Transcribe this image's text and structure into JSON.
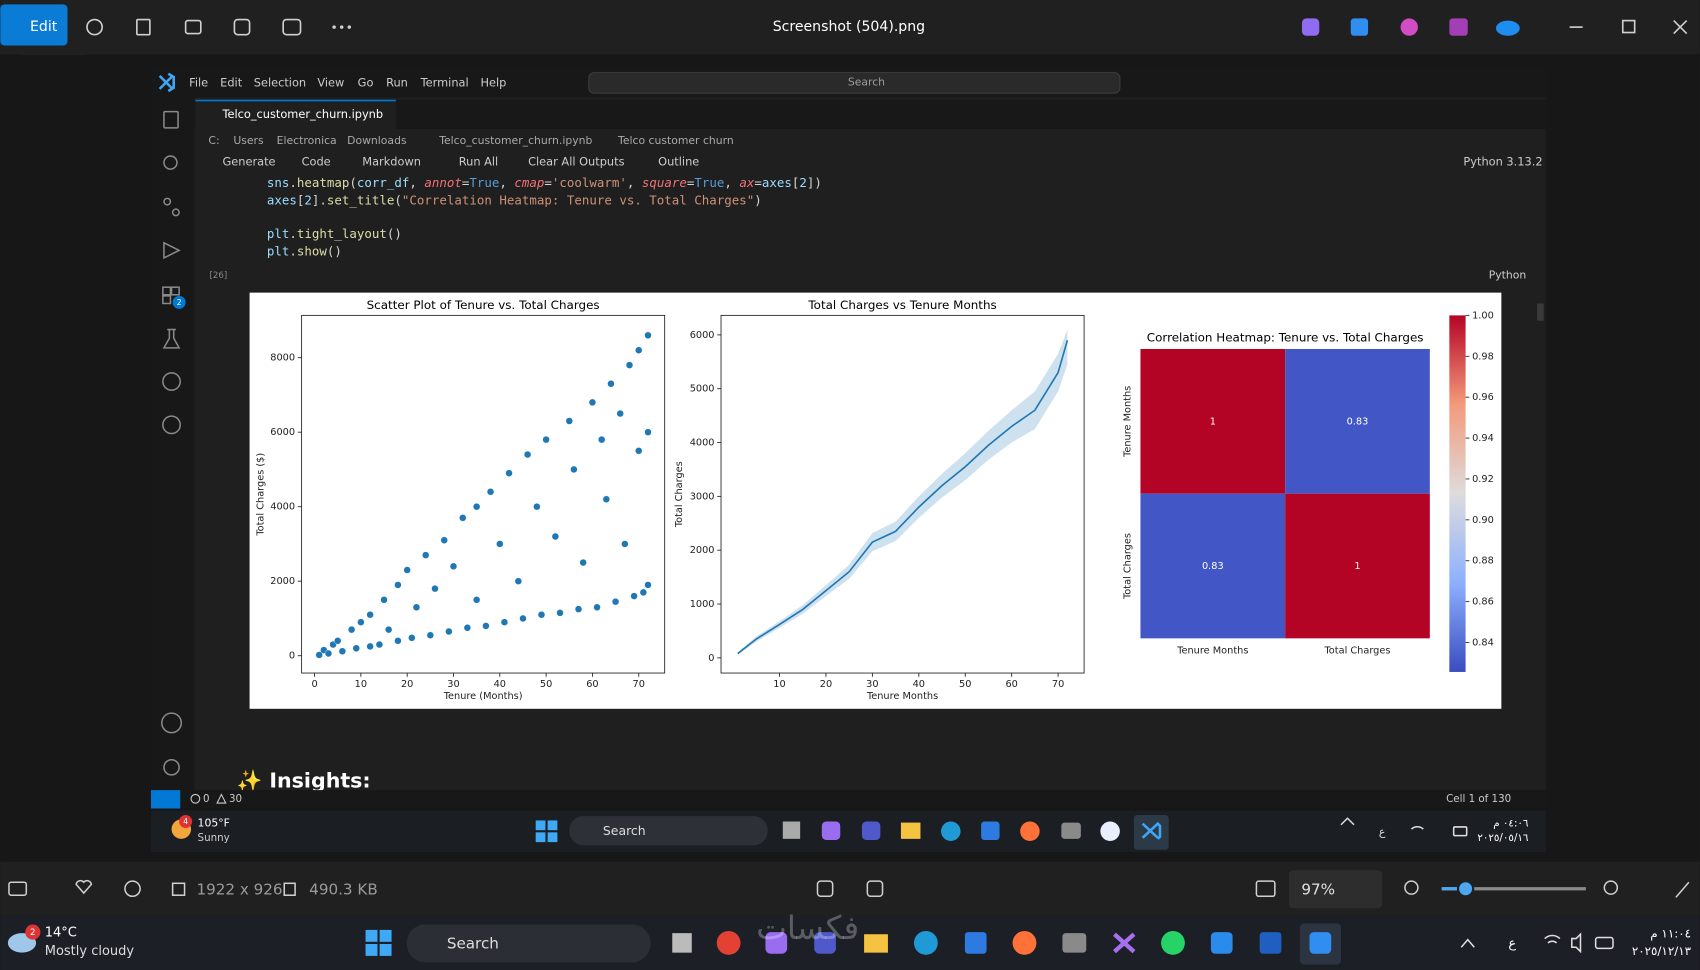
{
  "viewer": {
    "edit": "Edit",
    "file_name": "Screenshot (504).png",
    "dimensions": "1922 x 926",
    "file_size": "490.3 KB",
    "zoom": "97%"
  },
  "vscode": {
    "menu": [
      "File",
      "Edit",
      "Selection",
      "View",
      "Go",
      "Run",
      "Terminal",
      "Help"
    ],
    "search": "Search",
    "tab": "Telco_customer_churn.ipynb",
    "breadcrumb": [
      "C:",
      "Users",
      "Electronica",
      "Downloads",
      "Telco_customer_churn.ipynb",
      "Telco customer churn"
    ],
    "toolbar": [
      "Generate",
      "Code",
      "Markdown",
      "Run All",
      "Clear All Outputs",
      "Outline"
    ],
    "kernel": "Python 3.13.2",
    "code": [
      "sns.heatmap(corr_df, annot=True, cmap='coolwarm', square=True, ax=axes[2])",
      "axes[2].set_title(\"Correlation Heatmap: Tenure vs. Total Charges\")",
      "",
      "plt.tight_layout()",
      "plt.show()"
    ],
    "execution_count": "[26]",
    "cell_language": "Python",
    "markdown_heading": "✨ Insights:",
    "extensions_badge": "2",
    "status": {
      "errors": "0",
      "warnings": "30",
      "cell": "Cell 1 of 130"
    }
  },
  "inner_taskbar": {
    "badge": "4",
    "temperature": "105°F",
    "weather": "Sunny",
    "search": "Search",
    "language": "ع",
    "time": "٠٤:٠٦ م",
    "date": "٢٠٢٥/٠٥/١٦"
  },
  "taskbar": {
    "badge": "2",
    "temperature": "14°C",
    "weather": "Mostly cloudy",
    "search": "Search",
    "watermark": "فكسات",
    "language": "ع",
    "time": "١١:٠٤ م",
    "date": "٢٠٢٥/١٢/١٣"
  },
  "chart_data": [
    {
      "type": "scatter",
      "title": "Scatter Plot of Tenure vs. Total Charges",
      "x_label": "Tenure (Months)",
      "y_label": "Total Charges ($)",
      "color": "#1f77b4",
      "x": [
        1,
        2,
        3,
        4,
        5,
        6,
        8,
        9,
        10,
        12,
        12,
        14,
        15,
        16,
        18,
        18,
        20,
        21,
        22,
        24,
        25,
        26,
        28,
        29,
        30,
        32,
        33,
        35,
        35,
        37,
        38,
        40,
        41,
        42,
        44,
        45,
        46,
        48,
        49,
        50,
        52,
        53,
        55,
        56,
        57,
        58,
        60,
        61,
        62,
        63,
        64,
        65,
        66,
        67,
        68,
        69,
        70,
        70,
        71,
        72,
        72,
        72
      ],
      "y": [
        20,
        150,
        60,
        300,
        400,
        120,
        700,
        200,
        900,
        1100,
        250,
        300,
        1500,
        700,
        1900,
        400,
        2300,
        480,
        1300,
        2700,
        550,
        1800,
        3100,
        650,
        2400,
        3700,
        750,
        4000,
        1500,
        800,
        4400,
        3000,
        900,
        4900,
        2000,
        1000,
        5400,
        4000,
        1100,
        5800,
        3200,
        1150,
        6300,
        5000,
        1250,
        2500,
        6800,
        1300,
        5800,
        4200,
        7300,
        1450,
        6500,
        3000,
        7800,
        1600,
        8200,
        5500,
        1700,
        8600,
        1900,
        6000
      ],
      "xlim": [
        -2.8,
        75.6
      ],
      "ylim": [
        -465,
        9135
      ],
      "xticks": [
        0,
        10,
        20,
        30,
        40,
        50,
        60,
        70
      ],
      "yticks": [
        0,
        2000,
        4000,
        6000,
        8000
      ]
    },
    {
      "type": "line",
      "title": "Total Charges vs Tenure Months",
      "x_label": "Tenure Months",
      "y_label": "Total Charges",
      "color": "#1f77b4",
      "x": [
        1,
        5,
        10,
        15,
        20,
        25,
        30,
        35,
        40,
        45,
        50,
        55,
        60,
        65,
        70,
        72
      ],
      "values": [
        80,
        350,
        620,
        900,
        1250,
        1600,
        2150,
        2350,
        2800,
        3200,
        3550,
        3950,
        4300,
        4600,
        5300,
        5900
      ],
      "ci_lower": [
        60,
        300,
        560,
        820,
        1150,
        1470,
        1980,
        2170,
        2600,
        2980,
        3300,
        3680,
        4000,
        4250,
        4950,
        5450
      ],
      "ci_upper": [
        100,
        400,
        680,
        980,
        1350,
        1730,
        2320,
        2530,
        3000,
        3420,
        3800,
        4220,
        4600,
        4950,
        5650,
        6100
      ],
      "xlim": [
        -2.6,
        75.6
      ],
      "ylim": [
        -282,
        6362
      ],
      "xticks": [
        10,
        20,
        30,
        40,
        50,
        60,
        70
      ],
      "yticks": [
        0,
        1000,
        2000,
        3000,
        4000,
        5000,
        6000
      ]
    },
    {
      "type": "heatmap",
      "title": "Correlation Heatmap: Tenure vs. Total Charges",
      "x_categories": [
        "Tenure Months",
        "Total Charges"
      ],
      "y_categories": [
        "Tenure Months",
        "Total Charges"
      ],
      "values": [
        [
          1,
          0.83
        ],
        [
          0.83,
          1
        ]
      ],
      "colormap": "coolwarm",
      "clim": [
        0.8256,
        1.0
      ],
      "colorbar_ticks": [
        0.84,
        0.86,
        0.88,
        {
          "value": 0.9,
          "label": "0.90"
        },
        0.92,
        0.94,
        0.96,
        0.98,
        {
          "value": 1.0,
          "label": "1.00"
        }
      ]
    }
  ]
}
